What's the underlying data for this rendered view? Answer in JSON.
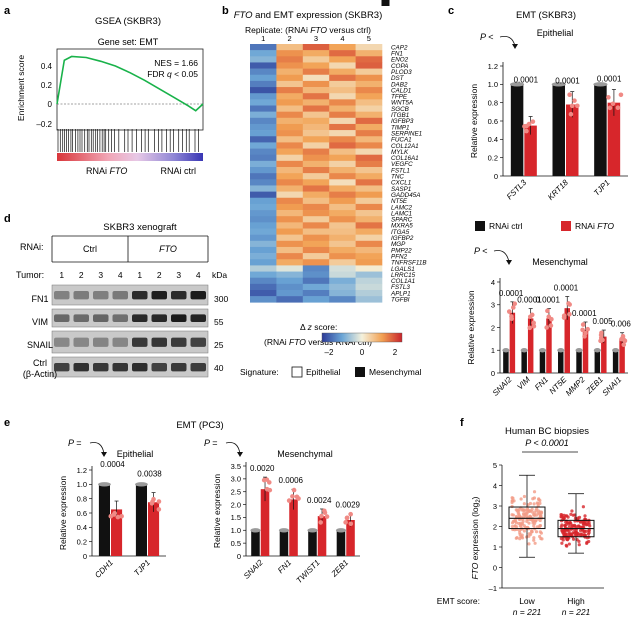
{
  "panel_labels": {
    "a": "a",
    "b": "b",
    "c": "c",
    "d": "d",
    "e": "e",
    "f": "f"
  },
  "panel_a": {
    "title": "GSEA (SKBR3)",
    "gene_set": "Gene set: EMT",
    "nes": "NES = 1.66",
    "fdr_prefix": "FDR ",
    "fdr_q": "q",
    "fdr_suffix": " < 0.05",
    "ylabel": "Enrichment score",
    "left_label_prefix": "RNAi ",
    "left_label_gene": "FTO",
    "right_label": "RNAi ctrl",
    "yticks": [
      "0.4",
      "0.2",
      "0",
      "–0.2"
    ]
  },
  "panel_b": {
    "title_gene": "FTO",
    "title_rest": " and EMT expression (SKBR3)",
    "replicate_prefix": "Replicate: (RNAi ",
    "replicate_gene": "FTO",
    "replicate_suffix": " versus ctrl)",
    "replicates": [
      "1",
      "2",
      "3",
      "4",
      "5"
    ],
    "genes": [
      "CAP2",
      "FN1",
      "ENO2",
      "COPA",
      "PLOD3",
      "DST",
      "DAB2",
      "CALD1",
      "TFPE",
      "WNT5A",
      "SGCB",
      "ITGB1",
      "IGFBP3",
      "TIMP1",
      "SERPINE1",
      "FUCA1",
      "COL12A1",
      "MYLK",
      "COL16A1",
      "VEGFC",
      "FSTL1",
      "TNC",
      "CXCL1",
      "SASP1",
      "GADD45A",
      "NT5E",
      "LAMC2",
      "LAMC1",
      "SPARC",
      "MXRA5",
      "ITGA5",
      "IGFBP2",
      "MGP",
      "PMP22",
      "PFN2",
      "TNFRSF11B",
      "LGALS1",
      "LRRC15",
      "COL1A1",
      "FSTL3",
      "APLP1",
      "TGFBI"
    ],
    "signature": [
      "M",
      "M",
      "M",
      "M",
      "M",
      "E",
      "M",
      "M",
      "M",
      "M",
      "M",
      "M",
      "M",
      "M",
      "M",
      "E",
      "M",
      "M",
      "M",
      "M",
      "M",
      "M",
      "E",
      "M",
      "M",
      "M",
      "E",
      "M",
      "M",
      "M",
      "M",
      "M",
      "M",
      "M",
      "M",
      "M",
      "M",
      "E",
      "M",
      "M",
      "M",
      "M"
    ],
    "zscores": [
      [
        -1.8,
        0.8,
        1.9,
        1.2,
        0.4
      ],
      [
        -1.2,
        1.4,
        1.1,
        1.8,
        1.0
      ],
      [
        -1.0,
        1.6,
        0.6,
        1.2,
        1.8
      ],
      [
        -2.1,
        1.4,
        1.2,
        0.4,
        1.9
      ],
      [
        -1.6,
        1.0,
        1.6,
        1.1,
        0.6
      ],
      [
        -1.3,
        1.3,
        0.3,
        1.7,
        1.4
      ],
      [
        -1.7,
        0.7,
        1.4,
        0.6,
        1.0
      ],
      [
        -2.2,
        1.6,
        0.9,
        0.8,
        1.5
      ],
      [
        -1.4,
        1.1,
        1.7,
        0.4,
        1.2
      ],
      [
        -1.2,
        1.3,
        1.0,
        1.5,
        0.8
      ],
      [
        -1.8,
        0.8,
        1.7,
        1.0,
        0.5
      ],
      [
        -1.1,
        1.5,
        0.7,
        1.6,
        1.0
      ],
      [
        -1.6,
        1.0,
        1.1,
        0.4,
        1.8
      ],
      [
        -1.4,
        1.3,
        0.9,
        1.7,
        1.1
      ],
      [
        -1.3,
        1.4,
        0.7,
        0.4,
        1.6
      ],
      [
        -2.0,
        0.8,
        1.2,
        1.5,
        0.9
      ],
      [
        -1.2,
        1.5,
        0.5,
        1.8,
        1.5
      ],
      [
        -1.6,
        1.2,
        1.6,
        0.8,
        0.4
      ],
      [
        -1.7,
        0.5,
        1.4,
        1.2,
        1.8
      ],
      [
        -1.1,
        1.5,
        1.0,
        0.5,
        1.6
      ],
      [
        -1.4,
        0.9,
        1.6,
        1.0,
        0.7
      ],
      [
        -1.8,
        1.2,
        0.6,
        1.5,
        1.1
      ],
      [
        -1.6,
        1.5,
        1.2,
        0.3,
        1.7
      ],
      [
        -1.0,
        1.0,
        1.7,
        1.1,
        0.8
      ],
      [
        -2.1,
        0.4,
        1.1,
        1.6,
        1.3
      ],
      [
        -1.3,
        1.5,
        0.8,
        1.3,
        0.6
      ],
      [
        -1.2,
        1.3,
        1.5,
        0.8,
        1.5
      ],
      [
        -1.4,
        0.9,
        1.4,
        1.1,
        0.7
      ],
      [
        -1.5,
        1.4,
        0.6,
        1.4,
        1.0
      ],
      [
        -1.3,
        0.9,
        1.5,
        0.7,
        1.7
      ],
      [
        -1.2,
        1.3,
        0.8,
        0.8,
        1.1
      ],
      [
        -1.4,
        0.7,
        1.4,
        1.0,
        0.5
      ],
      [
        -1.0,
        1.4,
        1.2,
        0.7,
        1.5
      ],
      [
        -1.3,
        0.8,
        1.5,
        1.1,
        0.9
      ],
      [
        -1.1,
        1.5,
        0.6,
        1.4,
        1.2
      ],
      [
        -1.3,
        1.1,
        1.4,
        0.6,
        1.3
      ],
      [
        -0.6,
        -0.2,
        -1.6,
        -0.3,
        0.1
      ],
      [
        -1.2,
        -1.0,
        -1.5,
        -0.4,
        -0.8
      ],
      [
        -1.6,
        -1.3,
        -1.8,
        -1.1,
        -0.5
      ],
      [
        -1.9,
        -1.5,
        -1.2,
        -0.9,
        -0.4
      ],
      [
        -2.1,
        -1.4,
        -1.7,
        -1.0,
        -0.6
      ],
      [
        -1.5,
        -1.9,
        -1.3,
        -1.6,
        -0.8
      ]
    ],
    "legend_title_symbol": "Δ ",
    "legend_title_z": "z",
    "legend_title_rest": " score:",
    "legend_subtitle_prefix": "(RNAi ",
    "legend_subtitle_gene": "FTO",
    "legend_subtitle_suffix": " versus RNAi ctrl)",
    "legend_ticks": [
      "–2",
      "0",
      "2"
    ],
    "signature_label": "Signature:",
    "epithelial": "Epithelial",
    "mesenchymal": "Mesenchymal"
  },
  "panel_c": {
    "title": "EMT (SKBR3)",
    "p_label": "P <",
    "subtitle": "Epithelial",
    "ylabel": "Relative expression",
    "yticks": [
      "0",
      "0.2",
      "0.4",
      "0.6",
      "0.8",
      "1.0",
      "1.2"
    ],
    "genes": [
      "FSTL3",
      "KRT18",
      "TJP1"
    ],
    "ctrl": [
      1,
      1,
      1
    ],
    "fto": [
      0.55,
      0.78,
      0.8
    ],
    "pvals": [
      "0.0001",
      "0.0001",
      "0.0001"
    ],
    "legend_ctrl": "RNAi ctrl",
    "legend_fto_prefix": "RNAi ",
    "legend_fto_gene": "FTO"
  },
  "panel_c2": {
    "p_label": "P <",
    "subtitle": "Mesenchymal",
    "ylabel": "Relative expression",
    "yticks": [
      "0",
      "1",
      "2",
      "3",
      "4"
    ],
    "genes": [
      "SNAI2",
      "VIM",
      "FN1",
      "NT5E",
      "MMP2",
      "ZEB1",
      "SNAI1"
    ],
    "ctrl": [
      1,
      1,
      1,
      1,
      1,
      1,
      1
    ],
    "fto": [
      2.65,
      2.4,
      2.4,
      2.85,
      1.9,
      1.6,
      1.5
    ],
    "pvals": [
      "0.0001",
      "0.0001",
      "0.0001",
      "0.0001",
      "0.0001",
      "0.005",
      "0.006"
    ]
  },
  "panel_d": {
    "title": "SKBR3 xenograft",
    "rnai_label": "RNAi:",
    "ctrl_label": "Ctrl",
    "fto_label": "FTO",
    "tumor_label": "Tumor:",
    "tumors": [
      "1",
      "2",
      "3",
      "4",
      "1",
      "2",
      "3",
      "4"
    ],
    "kda": "kDa",
    "rows": [
      "FN1",
      "VIM",
      "SNAIL",
      "Ctrl",
      "(β-Actin)"
    ],
    "sizes": [
      "300",
      "55",
      "25",
      "40"
    ]
  },
  "panel_e": {
    "title": "EMT (PC3)",
    "p_label": "P =",
    "epi_subtitle": "Epithelial",
    "mes_subtitle": "Mesenchymal",
    "ylabel": "Relative expression",
    "epi_yticks": [
      "0",
      "0.2",
      "0.4",
      "0.6",
      "0.8",
      "1.0",
      "1.2"
    ],
    "mes_yticks": [
      "0",
      "0.5",
      "1.0",
      "1.5",
      "2.0",
      "2.5",
      "3.0",
      "3.5"
    ],
    "epi_genes": [
      "CDH1",
      "TJP1"
    ],
    "epi_ctrl": [
      1,
      1
    ],
    "epi_fto": [
      0.65,
      0.75
    ],
    "epi_pvals": [
      "0.0004",
      "0.0038"
    ],
    "mes_genes": [
      "SNAI2",
      "FN1",
      "TWIST1",
      "ZEB1"
    ],
    "mes_ctrl": [
      1,
      1,
      1,
      1
    ],
    "mes_fto": [
      2.6,
      2.2,
      1.55,
      1.4
    ],
    "mes_pvals": [
      "0.0020",
      "0.0006",
      "0.0024",
      "0.0029"
    ]
  },
  "panel_f": {
    "title": "Human BC biopsies",
    "pval": "P < 0.0001",
    "ylabel_gene": "FTO",
    "ylabel_rest": " expression (log",
    "ylabel_sub": "2",
    "ylabel_end": ")",
    "yticks": [
      "–1",
      "0",
      "1",
      "2",
      "3",
      "4",
      "5"
    ],
    "score_label": "EMT score:",
    "groups": [
      "Low",
      "High"
    ],
    "ns": [
      "n = 221",
      "n = 221"
    ]
  },
  "colors": {
    "red": "#d7262b",
    "black": "#111111",
    "grey": "#9a9a9a",
    "sig_blue": "#2a36b4"
  },
  "chart_data": [
    {
      "type": "line",
      "title": "GSEA (SKBR3)",
      "subtitle": "Gene set: EMT",
      "ylabel": "Enrichment score",
      "ylim": [
        -0.3,
        0.5
      ],
      "x": [
        0,
        0.05,
        0.1,
        0.2,
        0.3,
        0.4,
        0.5,
        0.6,
        0.7,
        0.8,
        0.9,
        0.95,
        1.0
      ],
      "y": [
        0,
        0.46,
        0.5,
        0.49,
        0.45,
        0.4,
        0.33,
        0.25,
        0.16,
        0.07,
        -0.02,
        -0.07,
        0
      ]
    },
    {
      "type": "heatmap",
      "title": "FTO and EMT expression (SKBR3)",
      "xlabel": "Replicate: (RNAi FTO versus ctrl)"
    },
    {
      "type": "bar",
      "title": "EMT (SKBR3)",
      "subtitle": "Epithelial",
      "ylabel": "Relative expression",
      "categories": [
        "FSTL3",
        "KRT18",
        "TJP1"
      ],
      "series": [
        {
          "name": "RNAi ctrl",
          "values": [
            1,
            1,
            1
          ]
        },
        {
          "name": "RNAi FTO",
          "values": [
            0.55,
            0.78,
            0.8
          ]
        }
      ],
      "ylim": [
        0,
        1.2
      ]
    },
    {
      "type": "bar",
      "subtitle": "Mesenchymal",
      "ylabel": "Relative expression",
      "categories": [
        "SNAI2",
        "VIM",
        "FN1",
        "NT5E",
        "MMP2",
        "ZEB1",
        "SNAI1"
      ],
      "series": [
        {
          "name": "RNAi ctrl",
          "values": [
            1,
            1,
            1,
            1,
            1,
            1,
            1
          ]
        },
        {
          "name": "RNAi FTO",
          "values": [
            2.65,
            2.4,
            2.4,
            2.85,
            1.9,
            1.6,
            1.5
          ]
        }
      ],
      "ylim": [
        0,
        4
      ]
    },
    {
      "type": "bar",
      "title": "EMT (PC3)",
      "subtitle": "Epithelial",
      "ylabel": "Relative expression",
      "categories": [
        "CDH1",
        "TJP1"
      ],
      "series": [
        {
          "values": [
            1,
            1
          ]
        },
        {
          "values": [
            0.65,
            0.75
          ]
        }
      ],
      "ylim": [
        0,
        1.2
      ]
    },
    {
      "type": "bar",
      "subtitle": "Mesenchymal",
      "ylabel": "Relative expression",
      "categories": [
        "SNAI2",
        "FN1",
        "TWIST1",
        "ZEB1"
      ],
      "series": [
        {
          "values": [
            1,
            1,
            1,
            1
          ]
        },
        {
          "values": [
            2.6,
            2.2,
            1.55,
            1.4
          ]
        }
      ],
      "ylim": [
        0,
        3.5
      ]
    }
  ]
}
